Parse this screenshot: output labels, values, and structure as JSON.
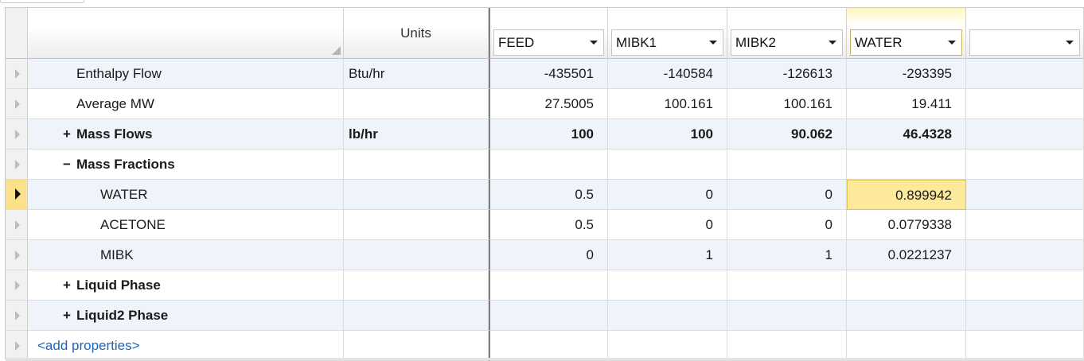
{
  "header": {
    "units_label": "Units",
    "streams": [
      {
        "label": "FEED",
        "active": false
      },
      {
        "label": "MIBK1",
        "active": false
      },
      {
        "label": "MIBK2",
        "active": false
      },
      {
        "label": "WATER",
        "active": true
      },
      {
        "label": "",
        "active": false
      }
    ]
  },
  "rows": [
    {
      "label": "Enthalpy Flow",
      "unit": "Btu/hr",
      "values": [
        "-435501",
        "-140584",
        "-126613",
        "-293395",
        ""
      ]
    },
    {
      "label": "Average MW",
      "unit": "",
      "values": [
        "27.5005",
        "100.161",
        "100.161",
        "19.411",
        ""
      ]
    },
    {
      "label": "Mass Flows",
      "expander": "+",
      "unit": "lb/hr",
      "values": [
        "100",
        "100",
        "90.062",
        "46.4328",
        ""
      ]
    },
    {
      "label": "Mass Fractions",
      "expander": "−",
      "unit": "",
      "values": [
        "",
        "",
        "",
        "",
        ""
      ]
    },
    {
      "label": "WATER",
      "unit": "",
      "values": [
        "0.5",
        "0",
        "0",
        "0.899942",
        ""
      ]
    },
    {
      "label": "ACETONE",
      "unit": "",
      "values": [
        "0.5",
        "0",
        "0",
        "0.0779338",
        ""
      ]
    },
    {
      "label": "MIBK",
      "unit": "",
      "values": [
        "0",
        "1",
        "1",
        "0.0221237",
        ""
      ]
    },
    {
      "label": "Liquid Phase",
      "expander": "+",
      "unit": "",
      "values": [
        "",
        "",
        "",
        "",
        ""
      ]
    },
    {
      "label": "Liquid2 Phase",
      "expander": "+",
      "unit": "",
      "values": [
        "",
        "",
        "",
        "",
        ""
      ]
    },
    {
      "label": "<add properties>",
      "unit": "",
      "values": [
        "",
        "",
        "",
        "",
        ""
      ]
    }
  ],
  "colors": {
    "selected_cell": "#fde99a",
    "alt_row": "#eef4fa",
    "link": "#1a65c0"
  }
}
